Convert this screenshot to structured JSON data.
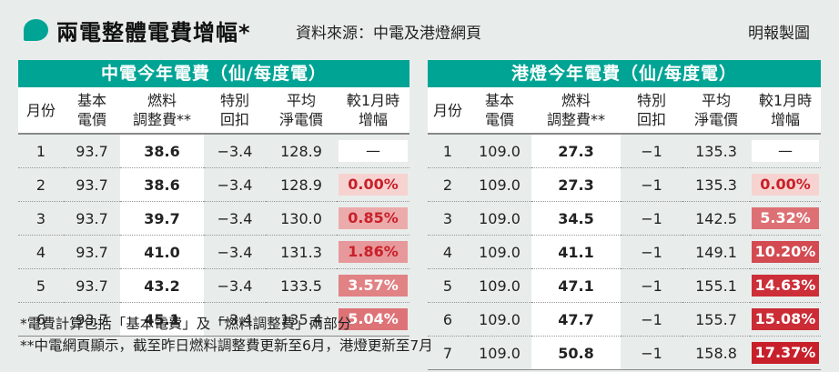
{
  "header": {
    "title": "兩電整體電費增幅*",
    "source": "資料來源：中電及港燈網頁",
    "brand": "明報製圖"
  },
  "columns": [
    "月份",
    "基本\n電價",
    "燃料\n調整費**",
    "特別\n回扣",
    "平均\n淨電價",
    "較1月時\n增幅"
  ],
  "clp": {
    "title": "中電今年電費（仙/每度電）",
    "rows": [
      {
        "month": "1",
        "base": "93.7",
        "fuel": "38.6",
        "rebate": "−3.4",
        "net": "128.9",
        "increase": "—",
        "pct": null
      },
      {
        "month": "2",
        "base": "93.7",
        "fuel": "38.6",
        "rebate": "−3.4",
        "net": "128.9",
        "increase": "0.00%",
        "pct": 0.0
      },
      {
        "month": "3",
        "base": "93.7",
        "fuel": "39.7",
        "rebate": "−3.4",
        "net": "130.0",
        "increase": "0.85%",
        "pct": 0.85
      },
      {
        "month": "4",
        "base": "93.7",
        "fuel": "41.0",
        "rebate": "−3.4",
        "net": "131.3",
        "increase": "1.86%",
        "pct": 1.86
      },
      {
        "month": "5",
        "base": "93.7",
        "fuel": "43.2",
        "rebate": "−3.4",
        "net": "133.5",
        "increase": "3.57%",
        "pct": 3.57
      },
      {
        "month": "6",
        "base": "93.7",
        "fuel": "45.1",
        "rebate": "−3.4",
        "net": "135.4",
        "increase": "5.04%",
        "pct": 5.04
      }
    ]
  },
  "hke": {
    "title": "港燈今年電費（仙/每度電）",
    "rows": [
      {
        "month": "1",
        "base": "109.0",
        "fuel": "27.3",
        "rebate": "−1",
        "net": "135.3",
        "increase": "—",
        "pct": null
      },
      {
        "month": "2",
        "base": "109.0",
        "fuel": "27.3",
        "rebate": "−1",
        "net": "135.3",
        "increase": "0.00%",
        "pct": 0.0
      },
      {
        "month": "3",
        "base": "109.0",
        "fuel": "34.5",
        "rebate": "−1",
        "net": "142.5",
        "increase": "5.32%",
        "pct": 5.32
      },
      {
        "month": "4",
        "base": "109.0",
        "fuel": "41.1",
        "rebate": "−1",
        "net": "149.1",
        "increase": "10.20%",
        "pct": 10.2
      },
      {
        "month": "5",
        "base": "109.0",
        "fuel": "47.1",
        "rebate": "−1",
        "net": "155.1",
        "increase": "14.63%",
        "pct": 14.63
      },
      {
        "month": "6",
        "base": "109.0",
        "fuel": "47.7",
        "rebate": "−1",
        "net": "155.7",
        "increase": "15.08%",
        "pct": 15.08
      },
      {
        "month": "7",
        "base": "109.0",
        "fuel": "50.8",
        "rebate": "−1",
        "net": "158.8",
        "increase": "17.37%",
        "pct": 17.37
      }
    ]
  },
  "footnotes": [
    "*電費計算包括「基本電費」及「燃料調整費」兩部分",
    "**中電網頁顯示，截至昨日燃料調整費更新至6月，港燈更新至7月"
  ],
  "colors": {
    "accent": "#00a495",
    "background": "#e8edeb",
    "heat_low": "#f6d3d0",
    "heat_high": "#c8202a"
  }
}
